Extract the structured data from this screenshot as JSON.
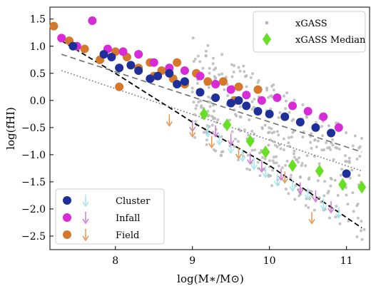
{
  "chart_data": {
    "type": "scatter",
    "xlabel": "log(M∗/M⊙)",
    "ylabel": "log(fHI)",
    "xlim": [
      7.15,
      11.3
    ],
    "ylim": [
      -2.75,
      1.72
    ],
    "x_ticks": [
      8,
      9,
      10,
      11
    ],
    "y_ticks": [
      1.5,
      1.0,
      0.5,
      0.0,
      -0.5,
      -1.0,
      -1.5,
      -2.0,
      -2.5
    ],
    "legend_top_right": [
      "xGASS",
      "xGASS Median"
    ],
    "legend_bottom_left": [
      "Cluster",
      "Infall",
      "Field"
    ],
    "colors": {
      "cluster": "#1f2f9a",
      "cluster_arrow": "#9fe6f0",
      "infall": "#d62bd6",
      "infall_arrow": "#d07ad6",
      "field": "#d6782a",
      "field_arrow": "#e8944a",
      "xgass": "#b8b8b8",
      "median": "#66e022"
    },
    "series": [
      {
        "name": "Cluster",
        "marker": "circle",
        "points": [
          [
            7.45,
            1.0
          ],
          [
            7.85,
            0.85
          ],
          [
            7.95,
            0.8
          ],
          [
            8.05,
            0.6
          ],
          [
            8.2,
            0.65
          ],
          [
            8.3,
            0.55
          ],
          [
            8.45,
            0.4
          ],
          [
            8.55,
            0.45
          ],
          [
            8.7,
            0.5
          ],
          [
            8.8,
            0.3
          ],
          [
            8.9,
            0.35
          ],
          [
            9.1,
            0.15
          ],
          [
            9.3,
            0.05
          ],
          [
            9.5,
            -0.05
          ],
          [
            9.6,
            0.0
          ],
          [
            9.7,
            -0.1
          ],
          [
            9.85,
            -0.2
          ],
          [
            10.0,
            -0.25
          ],
          [
            10.2,
            -0.3
          ],
          [
            10.4,
            -0.4
          ],
          [
            10.6,
            -0.5
          ],
          [
            10.8,
            -0.6
          ],
          [
            11.0,
            -1.35
          ]
        ]
      },
      {
        "name": "Infall",
        "marker": "circle",
        "points": [
          [
            7.3,
            1.15
          ],
          [
            7.5,
            1.0
          ],
          [
            7.7,
            1.47
          ],
          [
            7.9,
            0.95
          ],
          [
            8.1,
            0.9
          ],
          [
            8.3,
            0.85
          ],
          [
            8.5,
            0.7
          ],
          [
            8.7,
            0.6
          ],
          [
            8.9,
            0.55
          ],
          [
            9.1,
            0.45
          ],
          [
            9.3,
            0.3
          ],
          [
            9.5,
            0.2
          ],
          [
            9.7,
            0.1
          ],
          [
            9.9,
            0.0
          ],
          [
            10.1,
            0.05
          ],
          [
            10.3,
            -0.1
          ],
          [
            10.5,
            -0.2
          ],
          [
            10.7,
            -0.3
          ],
          [
            10.9,
            -0.5
          ]
        ]
      },
      {
        "name": "Field",
        "marker": "circle",
        "points": [
          [
            7.2,
            1.37
          ],
          [
            7.4,
            1.1
          ],
          [
            7.6,
            0.95
          ],
          [
            7.8,
            0.75
          ],
          [
            8.0,
            0.9
          ],
          [
            8.15,
            0.8
          ],
          [
            8.3,
            0.6
          ],
          [
            8.45,
            0.7
          ],
          [
            8.6,
            0.55
          ],
          [
            8.75,
            0.4
          ],
          [
            8.9,
            0.3
          ],
          [
            8.05,
            0.25
          ],
          [
            8.5,
            0.45
          ],
          [
            8.8,
            0.7
          ],
          [
            9.05,
            0.5
          ],
          [
            9.2,
            0.35
          ],
          [
            9.4,
            0.35
          ],
          [
            9.6,
            0.25
          ],
          [
            9.55,
            0.0
          ],
          [
            9.85,
            0.2
          ]
        ]
      },
      {
        "name": "xGASS Median",
        "marker": "diamond",
        "points": [
          [
            9.15,
            -0.25
          ],
          [
            9.45,
            -0.45
          ],
          [
            9.75,
            -0.75
          ],
          [
            9.95,
            -0.95
          ],
          [
            10.3,
            -1.2
          ],
          [
            10.65,
            -1.3
          ],
          [
            10.95,
            -1.55
          ],
          [
            11.2,
            -1.6
          ]
        ]
      }
    ],
    "upper_limits": [
      {
        "name": "Cluster",
        "points": [
          [
            9.2,
            -0.55
          ],
          [
            9.35,
            -0.7
          ],
          [
            9.5,
            -0.85
          ],
          [
            9.65,
            -1.0
          ],
          [
            9.8,
            -1.15
          ],
          [
            9.95,
            -1.3
          ],
          [
            10.1,
            -1.45
          ],
          [
            10.3,
            -1.55
          ],
          [
            10.5,
            -1.7
          ],
          [
            10.7,
            -1.9
          ],
          [
            10.9,
            -2.05
          ]
        ]
      },
      {
        "name": "Infall",
        "points": [
          [
            9.0,
            -0.45
          ],
          [
            9.3,
            -0.55
          ],
          [
            9.5,
            -0.7
          ],
          [
            9.75,
            -1.05
          ],
          [
            9.9,
            -1.2
          ],
          [
            10.15,
            -1.35
          ],
          [
            10.4,
            -1.6
          ],
          [
            10.6,
            -1.75
          ],
          [
            10.8,
            -1.95
          ]
        ]
      },
      {
        "name": "Field",
        "points": [
          [
            8.7,
            -0.35
          ],
          [
            9.0,
            -0.55
          ],
          [
            9.25,
            -0.75
          ],
          [
            9.6,
            -0.95
          ],
          [
            10.2,
            -1.4
          ],
          [
            10.55,
            -2.15
          ]
        ]
      }
    ],
    "reference_lines": [
      {
        "style": "dashed",
        "color": "#000000",
        "points": [
          [
            7.3,
            1.1
          ],
          [
            8.0,
            0.5
          ],
          [
            9.0,
            -0.4
          ],
          [
            10.0,
            -1.2
          ],
          [
            11.2,
            -2.35
          ]
        ]
      },
      {
        "style": "dash-gray",
        "color": "#707070",
        "points": [
          [
            7.3,
            0.85
          ],
          [
            11.2,
            -0.95
          ]
        ]
      },
      {
        "style": "dotted",
        "color": "#707070",
        "points": [
          [
            7.3,
            0.55
          ],
          [
            11.2,
            -1.3
          ]
        ]
      }
    ]
  }
}
